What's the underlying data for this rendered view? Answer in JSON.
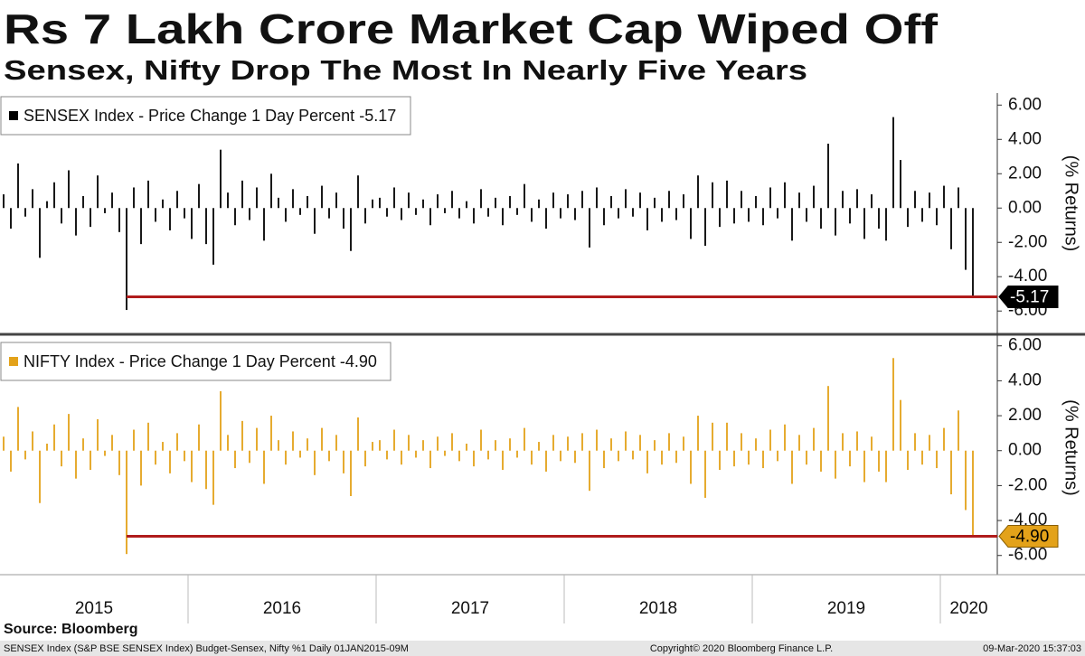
{
  "title": "Rs 7 Lakh Crore Market Cap Wiped Off",
  "subtitle": "Sensex, Nifty Drop The Most In Nearly Five Years",
  "source": "Source: Bloomberg",
  "footer": {
    "left": "SENSEX Index (S&P BSE SENSEX Index) Budget-Sensex, Nifty %1  Daily 01JAN2015-09M",
    "center": "Copyright© 2020 Bloomberg Finance L.P.",
    "right": "09-Mar-2020 15:37:03"
  },
  "chart_data": [
    {
      "type": "bar",
      "y_label": "(% Returns)",
      "ylim": [
        -7.2,
        6.7
      ],
      "yticks": [
        {
          "value": -6,
          "label": "-6.00"
        },
        {
          "value": -4,
          "label": "-4.00"
        },
        {
          "value": -2,
          "label": "-2.00"
        },
        {
          "value": 0,
          "label": "0.00"
        },
        {
          "value": 2,
          "label": "2.00"
        },
        {
          "value": 4,
          "label": "4.00"
        },
        {
          "value": 6,
          "label": "6.00"
        }
      ],
      "series": [
        {
          "name": "SENSEX Index - Price Change 1 Day Percent",
          "color": "#000000",
          "values": [
            0.8,
            -1.2,
            2.6,
            -0.5,
            1.1,
            -2.9,
            0.4,
            1.5,
            -0.9,
            2.2,
            -1.6,
            0.7,
            -1.1,
            1.9,
            -0.3,
            0.9,
            -1.4,
            -5.94,
            1.2,
            -2.1,
            1.6,
            -0.8,
            0.5,
            -1.3,
            1.0,
            -0.6,
            -1.8,
            1.4,
            -2.1,
            -3.3,
            3.4,
            0.9,
            -1.0,
            1.6,
            -0.7,
            1.2,
            -1.9,
            2.0,
            0.6,
            -0.8,
            1.1,
            -0.4,
            0.7,
            -1.5,
            1.3,
            -0.6,
            0.9,
            -1.2,
            -2.5,
            1.9,
            -0.9,
            0.5,
            0.6,
            -0.5,
            1.2,
            -0.7,
            0.9,
            -0.4,
            0.5,
            -1.0,
            0.8,
            -0.3,
            1.0,
            -0.6,
            0.4,
            -0.9,
            1.1,
            -0.5,
            0.6,
            -1.0,
            0.7,
            -0.4,
            1.4,
            -0.8,
            0.5,
            -1.2,
            0.9,
            -0.6,
            0.8,
            -0.7,
            1.0,
            -2.3,
            1.2,
            -1.0,
            0.7,
            -0.6,
            1.1,
            -0.5,
            0.9,
            -1.3,
            0.6,
            -0.8,
            1.0,
            -0.7,
            0.8,
            -1.8,
            1.9,
            -2.2,
            1.5,
            -1.1,
            1.6,
            -0.9,
            1.0,
            -0.8,
            0.7,
            -1.0,
            1.2,
            -0.6,
            1.5,
            -1.9,
            0.9,
            -0.8,
            1.3,
            -1.2,
            3.75,
            -1.6,
            1.0,
            -0.9,
            1.1,
            -1.8,
            0.8,
            -1.2,
            -1.9,
            5.3,
            2.8,
            -1.1,
            1.0,
            -0.8,
            0.9,
            -1.0,
            1.3,
            -2.4,
            1.2,
            -3.6,
            -5.17
          ]
        }
      ]
    },
    {
      "type": "bar",
      "y_label": "(% Returns)",
      "ylim": [
        -7.1,
        6.4
      ],
      "yticks": [
        {
          "value": -6,
          "label": "-6.00"
        },
        {
          "value": -4,
          "label": "-4.00"
        },
        {
          "value": -2,
          "label": "-2.00"
        },
        {
          "value": 0,
          "label": "0.00"
        },
        {
          "value": 2,
          "label": "2.00"
        },
        {
          "value": 4,
          "label": "4.00"
        },
        {
          "value": 6,
          "label": "6.00"
        }
      ],
      "categories": [
        "2015",
        null,
        null,
        null,
        null,
        null,
        null,
        null,
        null,
        null,
        null,
        null,
        null,
        null,
        null,
        null,
        null,
        null,
        null,
        null,
        null,
        null,
        null,
        null,
        null,
        null,
        "2016",
        null,
        null,
        null,
        null,
        null,
        null,
        null,
        null,
        null,
        null,
        null,
        null,
        null,
        null,
        null,
        null,
        null,
        null,
        null,
        null,
        null,
        null,
        null,
        null,
        null,
        "2017",
        null,
        null,
        null,
        null,
        null,
        null,
        null,
        null,
        null,
        null,
        null,
        null,
        null,
        null,
        null,
        null,
        null,
        null,
        null,
        null,
        null,
        null,
        null,
        null,
        null,
        "2018",
        null,
        null,
        null,
        null,
        null,
        null,
        null,
        null,
        null,
        null,
        null,
        null,
        null,
        null,
        null,
        null,
        null,
        null,
        null,
        null,
        null,
        null,
        null,
        null,
        null,
        "2019",
        null,
        null,
        null,
        null,
        null,
        null,
        null,
        null,
        null,
        null,
        null,
        null,
        null,
        null,
        null,
        null,
        null,
        null,
        null,
        null,
        null,
        null,
        null,
        null,
        null,
        "2020",
        null,
        null,
        null,
        null
      ],
      "series": [
        {
          "name": "NIFTY Index - Price Change 1 Day Percent",
          "color": "#e3a21a",
          "values": [
            0.8,
            -1.2,
            2.5,
            -0.5,
            1.1,
            -3.0,
            0.4,
            1.5,
            -0.9,
            2.1,
            -1.6,
            0.7,
            -1.1,
            1.8,
            -0.3,
            0.9,
            -1.4,
            -5.92,
            1.2,
            -2.0,
            1.6,
            -0.8,
            0.5,
            -1.3,
            1.0,
            -0.6,
            -1.8,
            1.5,
            -2.2,
            -3.1,
            3.4,
            0.9,
            -1.0,
            1.7,
            -0.7,
            1.3,
            -1.9,
            2.0,
            0.6,
            -0.8,
            1.1,
            -0.4,
            0.7,
            -1.4,
            1.3,
            -0.6,
            0.9,
            -1.3,
            -2.6,
            1.9,
            -0.9,
            0.5,
            0.6,
            -0.5,
            1.2,
            -0.8,
            0.9,
            -0.4,
            0.6,
            -1.0,
            0.8,
            -0.3,
            1.0,
            -0.6,
            0.4,
            -0.9,
            1.2,
            -0.5,
            0.6,
            -1.1,
            0.7,
            -0.4,
            1.3,
            -0.8,
            0.5,
            -1.2,
            0.9,
            -0.6,
            0.8,
            -0.7,
            1.0,
            -2.3,
            1.2,
            -1.0,
            0.7,
            -0.6,
            1.1,
            -0.5,
            0.9,
            -1.3,
            0.6,
            -0.8,
            1.0,
            -0.7,
            0.8,
            -1.9,
            2.0,
            -2.7,
            1.6,
            -1.1,
            1.6,
            -0.9,
            1.0,
            -0.8,
            0.7,
            -1.0,
            1.2,
            -0.6,
            1.5,
            -1.9,
            0.9,
            -0.8,
            1.3,
            -1.2,
            3.7,
            -1.6,
            1.0,
            -0.9,
            1.1,
            -1.8,
            0.8,
            -1.2,
            -1.8,
            5.3,
            2.9,
            -1.1,
            1.0,
            -0.8,
            0.9,
            -1.0,
            1.3,
            -2.5,
            2.3,
            -3.4,
            -4.9
          ],
          "value_labels": [
            null,
            null,
            null,
            null,
            null,
            null,
            null,
            null,
            null,
            null,
            null,
            null,
            null,
            null,
            null,
            null,
            null,
            null,
            null,
            null,
            null,
            null,
            null,
            null,
            null,
            null,
            null,
            null,
            null,
            null,
            null,
            null,
            null,
            null,
            null,
            null,
            null,
            null,
            null,
            null,
            null,
            null,
            null,
            null,
            null,
            null,
            null,
            null,
            null,
            null,
            null,
            null,
            null,
            null,
            null,
            null,
            null,
            null,
            null,
            null,
            null,
            null,
            null,
            null,
            null,
            null,
            null,
            null,
            null,
            null,
            null,
            null,
            null,
            null,
            null,
            null,
            null,
            null,
            null,
            null,
            null,
            null,
            null,
            null,
            null,
            null,
            null,
            null,
            null,
            null,
            null,
            null,
            null,
            null,
            null,
            null,
            null,
            null,
            null,
            null,
            null,
            null,
            null,
            null,
            null,
            null,
            null,
            null,
            null,
            null,
            null,
            null,
            null,
            null,
            null,
            null,
            null,
            null,
            null,
            null,
            null,
            null,
            null,
            null,
            null,
            null,
            null,
            null,
            null,
            null,
            null,
            null,
            null,
            null,
            "-4.90"
          ]
        }
      ]
    }
  ]
}
